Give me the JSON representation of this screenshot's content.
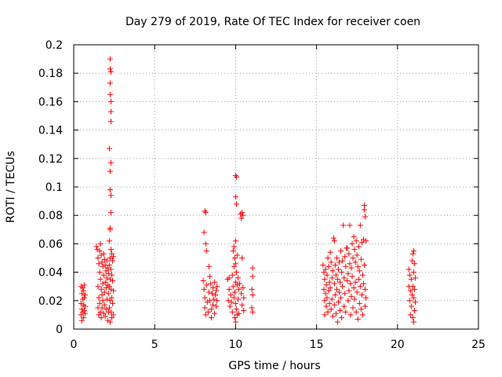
{
  "chart_data": {
    "type": "scatter",
    "title": "Day 279 of 2019, Rate Of TEC Index for receiver coen",
    "xlabel": "GPS time / hours",
    "ylabel": "ROTI / TECUs",
    "xlim": [
      0,
      25
    ],
    "ylim": [
      0,
      0.2
    ],
    "xticks": [
      0,
      5,
      10,
      15,
      20,
      25
    ],
    "yticks": [
      0,
      0.02,
      0.04,
      0.06,
      0.08,
      0.1,
      0.12,
      0.14,
      0.16,
      0.18,
      0.2
    ],
    "xtick_labels": [
      "0",
      "5",
      "10",
      "15",
      "20",
      "25"
    ],
    "ytick_labels": [
      "0",
      "0.02",
      "0.04",
      "0.06",
      "0.08",
      "0.1",
      "0.12",
      "0.14",
      "0.16",
      "0.18",
      "0.2"
    ],
    "grid": true,
    "marker": "+",
    "marker_color": "#ff0000",
    "series": [
      {
        "points": [
          [
            0.45,
            0.03
          ],
          [
            0.45,
            0.018
          ],
          [
            0.45,
            0.01
          ],
          [
            0.5,
            0.025
          ],
          [
            0.5,
            0.014
          ],
          [
            0.5,
            0.006
          ],
          [
            0.55,
            0.029
          ],
          [
            0.55,
            0.021
          ],
          [
            0.55,
            0.012
          ],
          [
            0.6,
            0.027
          ],
          [
            0.6,
            0.017
          ],
          [
            0.6,
            0.008
          ],
          [
            0.65,
            0.031
          ],
          [
            0.65,
            0.022
          ],
          [
            0.65,
            0.013
          ],
          [
            0.7,
            0.024
          ],
          [
            0.7,
            0.011
          ],
          [
            0.7,
            0.016
          ],
          [
            1.4,
            0.058
          ],
          [
            1.45,
            0.056
          ],
          [
            1.5,
            0.05
          ],
          [
            1.5,
            0.03
          ],
          [
            1.5,
            0.015
          ],
          [
            1.55,
            0.046
          ],
          [
            1.55,
            0.022
          ],
          [
            1.55,
            0.01
          ],
          [
            1.6,
            0.055
          ],
          [
            1.6,
            0.04
          ],
          [
            1.6,
            0.018
          ],
          [
            1.65,
            0.06
          ],
          [
            1.65,
            0.035
          ],
          [
            1.65,
            0.012
          ],
          [
            1.7,
            0.052
          ],
          [
            1.7,
            0.028
          ],
          [
            1.7,
            0.008
          ],
          [
            1.75,
            0.047
          ],
          [
            1.75,
            0.024
          ],
          [
            1.75,
            0.015
          ],
          [
            1.8,
            0.044
          ],
          [
            1.8,
            0.032
          ],
          [
            1.8,
            0.02
          ],
          [
            1.85,
            0.053
          ],
          [
            1.85,
            0.038
          ],
          [
            1.85,
            0.011
          ],
          [
            1.9,
            0.049
          ],
          [
            1.9,
            0.026
          ],
          [
            1.9,
            0.017
          ],
          [
            1.95,
            0.045
          ],
          [
            1.95,
            0.033
          ],
          [
            1.95,
            0.009
          ],
          [
            2.0,
            0.041
          ],
          [
            2.0,
            0.029
          ],
          [
            2.0,
            0.014
          ],
          [
            2.05,
            0.048
          ],
          [
            2.05,
            0.036
          ],
          [
            2.05,
            0.021
          ],
          [
            2.1,
            0.043
          ],
          [
            2.1,
            0.031
          ],
          [
            2.1,
            0.006
          ],
          [
            2.15,
            0.039
          ],
          [
            2.15,
            0.025
          ],
          [
            2.15,
            0.012
          ],
          [
            2.2,
            0.062
          ],
          [
            2.2,
            0.045
          ],
          [
            2.2,
            0.03
          ],
          [
            2.2,
            0.015
          ],
          [
            2.25,
            0.07
          ],
          [
            2.25,
            0.05
          ],
          [
            2.25,
            0.035
          ],
          [
            2.25,
            0.02
          ],
          [
            2.25,
            0.005
          ],
          [
            2.3,
            0.056
          ],
          [
            2.3,
            0.042
          ],
          [
            2.3,
            0.028
          ],
          [
            2.3,
            0.012
          ],
          [
            2.35,
            0.053
          ],
          [
            2.35,
            0.038
          ],
          [
            2.35,
            0.022
          ],
          [
            2.35,
            0.008
          ],
          [
            2.4,
            0.048
          ],
          [
            2.4,
            0.034
          ],
          [
            2.4,
            0.018
          ],
          [
            2.45,
            0.051
          ],
          [
            2.45,
            0.027
          ],
          [
            2.45,
            0.01
          ],
          [
            2.25,
            0.19
          ],
          [
            2.25,
            0.183
          ],
          [
            2.3,
            0.181
          ],
          [
            2.25,
            0.173
          ],
          [
            2.25,
            0.165
          ],
          [
            2.3,
            0.16
          ],
          [
            2.3,
            0.153
          ],
          [
            2.3,
            0.146
          ],
          [
            2.2,
            0.127
          ],
          [
            2.3,
            0.117
          ],
          [
            2.25,
            0.111
          ],
          [
            2.25,
            0.098
          ],
          [
            2.3,
            0.094
          ],
          [
            2.3,
            0.082
          ],
          [
            2.25,
            0.071
          ],
          [
            8.1,
            0.083
          ],
          [
            8.15,
            0.082
          ],
          [
            8.05,
            0.068
          ],
          [
            8.15,
            0.06
          ],
          [
            8.2,
            0.055
          ],
          [
            8.0,
            0.034
          ],
          [
            8.05,
            0.028
          ],
          [
            8.1,
            0.022
          ],
          [
            8.1,
            0.015
          ],
          [
            8.15,
            0.01
          ],
          [
            8.2,
            0.031
          ],
          [
            8.25,
            0.019
          ],
          [
            8.3,
            0.012
          ],
          [
            8.35,
            0.026
          ],
          [
            8.35,
            0.044
          ],
          [
            8.4,
            0.037
          ],
          [
            8.4,
            0.02
          ],
          [
            8.45,
            0.032
          ],
          [
            8.5,
            0.014
          ],
          [
            8.5,
            0.008
          ],
          [
            8.55,
            0.025
          ],
          [
            8.6,
            0.029
          ],
          [
            8.6,
            0.017
          ],
          [
            8.65,
            0.021
          ],
          [
            8.7,
            0.033
          ],
          [
            8.7,
            0.011
          ],
          [
            8.75,
            0.024
          ],
          [
            8.8,
            0.027
          ],
          [
            8.8,
            0.016
          ],
          [
            8.85,
            0.03
          ],
          [
            8.85,
            0.02
          ],
          [
            9.5,
            0.035
          ],
          [
            9.55,
            0.02
          ],
          [
            9.6,
            0.036
          ],
          [
            9.6,
            0.028
          ],
          [
            9.65,
            0.016
          ],
          [
            9.7,
            0.024
          ],
          [
            9.75,
            0.019
          ],
          [
            9.8,
            0.038
          ],
          [
            9.8,
            0.012
          ],
          [
            9.85,
            0.055
          ],
          [
            9.85,
            0.03
          ],
          [
            9.9,
            0.058
          ],
          [
            9.9,
            0.044
          ],
          [
            9.9,
            0.022
          ],
          [
            9.95,
            0.05
          ],
          [
            9.95,
            0.026
          ],
          [
            9.95,
            0.008
          ],
          [
            10.0,
            0.108
          ],
          [
            10.05,
            0.107
          ],
          [
            10.0,
            0.093
          ],
          [
            10.05,
            0.088
          ],
          [
            10.0,
            0.062
          ],
          [
            10.0,
            0.046
          ],
          [
            10.0,
            0.033
          ],
          [
            10.0,
            0.018
          ],
          [
            10.0,
            0.005
          ],
          [
            10.05,
            0.04
          ],
          [
            10.05,
            0.014
          ],
          [
            10.1,
            0.052
          ],
          [
            10.1,
            0.031
          ],
          [
            10.1,
            0.01
          ],
          [
            10.15,
            0.036
          ],
          [
            10.15,
            0.021
          ],
          [
            10.2,
            0.028
          ],
          [
            10.2,
            0.011
          ],
          [
            10.25,
            0.032
          ],
          [
            10.3,
            0.081
          ],
          [
            10.35,
            0.078
          ],
          [
            10.35,
            0.025
          ],
          [
            10.4,
            0.082
          ],
          [
            10.4,
            0.05
          ],
          [
            10.4,
            0.017
          ],
          [
            10.45,
            0.08
          ],
          [
            10.45,
            0.029
          ],
          [
            10.5,
            0.022
          ],
          [
            10.5,
            0.013
          ],
          [
            11.05,
            0.043
          ],
          [
            11.05,
            0.037
          ],
          [
            11.0,
            0.028
          ],
          [
            11.05,
            0.024
          ],
          [
            11.0,
            0.015
          ],
          [
            11.05,
            0.012
          ],
          [
            15.4,
            0.045
          ],
          [
            15.45,
            0.04
          ],
          [
            15.45,
            0.028
          ],
          [
            15.5,
            0.035
          ],
          [
            15.5,
            0.02
          ],
          [
            15.5,
            0.01
          ],
          [
            15.55,
            0.042
          ],
          [
            15.55,
            0.025
          ],
          [
            15.6,
            0.031
          ],
          [
            15.6,
            0.016
          ],
          [
            15.65,
            0.038
          ],
          [
            15.65,
            0.022
          ],
          [
            15.7,
            0.05
          ],
          [
            15.7,
            0.012
          ],
          [
            15.75,
            0.044
          ],
          [
            15.75,
            0.027
          ],
          [
            15.8,
            0.033
          ],
          [
            15.8,
            0.018
          ],
          [
            15.85,
            0.054
          ],
          [
            15.85,
            0.029
          ],
          [
            15.9,
            0.047
          ],
          [
            15.9,
            0.014
          ],
          [
            15.95,
            0.036
          ],
          [
            15.95,
            0.021
          ],
          [
            16.0,
            0.041
          ],
          [
            16.0,
            0.009
          ],
          [
            16.05,
            0.064
          ],
          [
            16.1,
            0.062
          ],
          [
            16.1,
            0.032
          ],
          [
            16.1,
            0.017
          ],
          [
            16.15,
            0.045
          ],
          [
            16.15,
            0.024
          ],
          [
            16.2,
            0.038
          ],
          [
            16.2,
            0.011
          ],
          [
            16.25,
            0.05
          ],
          [
            16.25,
            0.028
          ],
          [
            16.3,
            0.035
          ],
          [
            16.3,
            0.005
          ],
          [
            16.35,
            0.042
          ],
          [
            16.35,
            0.019
          ],
          [
            16.4,
            0.047
          ],
          [
            16.4,
            0.026
          ],
          [
            16.45,
            0.033
          ],
          [
            16.45,
            0.013
          ],
          [
            16.5,
            0.055
          ],
          [
            16.5,
            0.022
          ],
          [
            16.55,
            0.04
          ],
          [
            16.55,
            0.008
          ],
          [
            16.6,
            0.048
          ],
          [
            16.6,
            0.03
          ],
          [
            16.65,
            0.073
          ],
          [
            16.7,
            0.036
          ],
          [
            16.7,
            0.016
          ],
          [
            16.75,
            0.051
          ],
          [
            16.75,
            0.025
          ],
          [
            16.8,
            0.044
          ],
          [
            16.8,
            0.012
          ],
          [
            16.85,
            0.057
          ],
          [
            16.9,
            0.057
          ],
          [
            16.9,
            0.034
          ],
          [
            16.95,
            0.039
          ],
          [
            16.95,
            0.02
          ],
          [
            17.0,
            0.053
          ],
          [
            17.0,
            0.027
          ],
          [
            17.05,
            0.073
          ],
          [
            17.05,
            0.046
          ],
          [
            17.1,
            0.032
          ],
          [
            17.1,
            0.01
          ],
          [
            17.15,
            0.043
          ],
          [
            17.15,
            0.023
          ],
          [
            17.2,
            0.06
          ],
          [
            17.2,
            0.037
          ],
          [
            17.25,
            0.05
          ],
          [
            17.25,
            0.015
          ],
          [
            17.3,
            0.065
          ],
          [
            17.3,
            0.029
          ],
          [
            17.35,
            0.056
          ],
          [
            17.35,
            0.021
          ],
          [
            17.4,
            0.047
          ],
          [
            17.4,
            0.033
          ],
          [
            17.45,
            0.062
          ],
          [
            17.45,
            0.012
          ],
          [
            17.5,
            0.052
          ],
          [
            17.5,
            0.026
          ],
          [
            17.55,
            0.044
          ],
          [
            17.55,
            0.007
          ],
          [
            17.6,
            0.058
          ],
          [
            17.6,
            0.035
          ],
          [
            17.65,
            0.041
          ],
          [
            17.65,
            0.018
          ],
          [
            17.7,
            0.073
          ],
          [
            17.7,
            0.03
          ],
          [
            17.75,
            0.049
          ],
          [
            17.75,
            0.014
          ],
          [
            17.8,
            0.061
          ],
          [
            17.8,
            0.024
          ],
          [
            17.85,
            0.038
          ],
          [
            17.85,
            0.01
          ],
          [
            17.9,
            0.063
          ],
          [
            17.9,
            0.032
          ],
          [
            17.95,
            0.087
          ],
          [
            17.95,
            0.084
          ],
          [
            17.95,
            0.045
          ],
          [
            18.0,
            0.079
          ],
          [
            18.0,
            0.028
          ],
          [
            18.0,
            0.016
          ],
          [
            18.05,
            0.062
          ],
          [
            18.05,
            0.022
          ],
          [
            20.7,
            0.042
          ],
          [
            20.7,
            0.03
          ],
          [
            20.75,
            0.038
          ],
          [
            20.75,
            0.02
          ],
          [
            20.8,
            0.027
          ],
          [
            20.8,
            0.01
          ],
          [
            20.85,
            0.035
          ],
          [
            20.85,
            0.016
          ],
          [
            20.9,
            0.048
          ],
          [
            20.9,
            0.024
          ],
          [
            20.95,
            0.053
          ],
          [
            20.95,
            0.03
          ],
          [
            20.95,
            0.008
          ],
          [
            21.0,
            0.055
          ],
          [
            21.0,
            0.04
          ],
          [
            21.0,
            0.022
          ],
          [
            21.0,
            0.005
          ],
          [
            21.05,
            0.046
          ],
          [
            21.05,
            0.028
          ],
          [
            21.05,
            0.013
          ],
          [
            21.1,
            0.036
          ],
          [
            21.1,
            0.019
          ]
        ]
      }
    ]
  }
}
